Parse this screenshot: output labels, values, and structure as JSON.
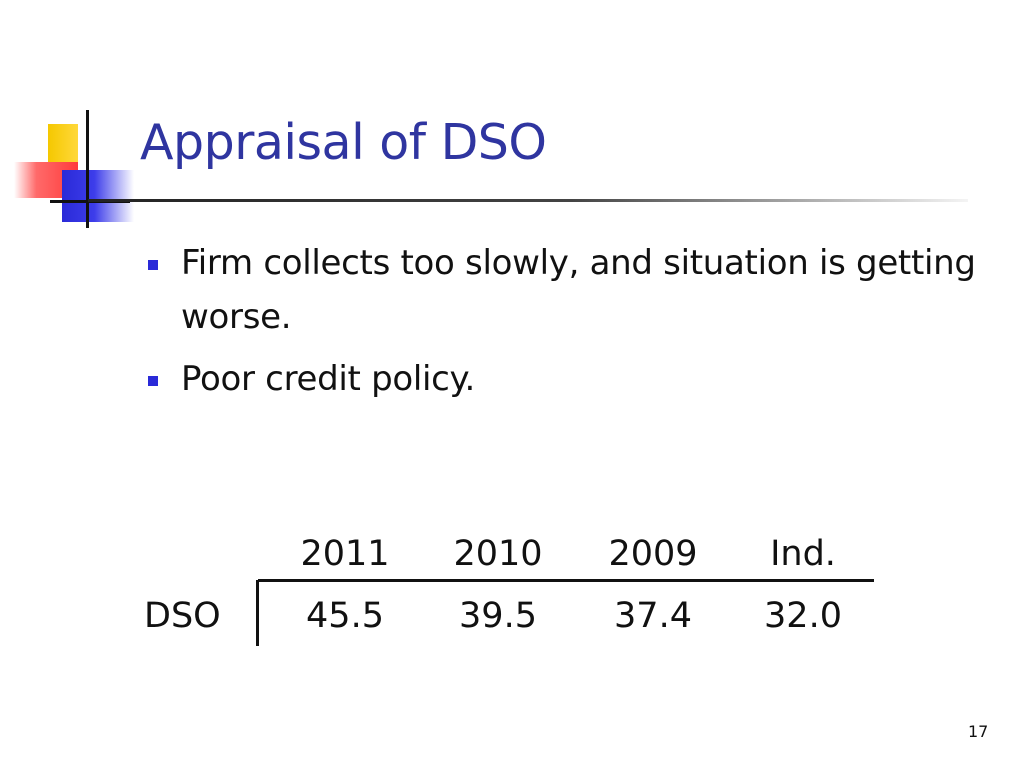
{
  "slide": {
    "title": "Appraisal of DSO",
    "bullets": [
      {
        "text": "Firm collects too slowly, and situation is getting worse."
      },
      {
        "text": "Poor credit policy."
      }
    ],
    "table": {
      "columns": [
        "2011",
        "2010",
        "2009",
        "Ind."
      ],
      "row_label": "DSO",
      "values": [
        "45.5",
        "39.5",
        "37.4",
        "32.0"
      ]
    },
    "page_number": "17",
    "colors": {
      "title": "#2f35a0",
      "bullet": "#2a2ad8",
      "accent_yellow": "#f5c800",
      "accent_red": "#ff3b3b",
      "accent_blue": "#2a2ad8"
    }
  }
}
